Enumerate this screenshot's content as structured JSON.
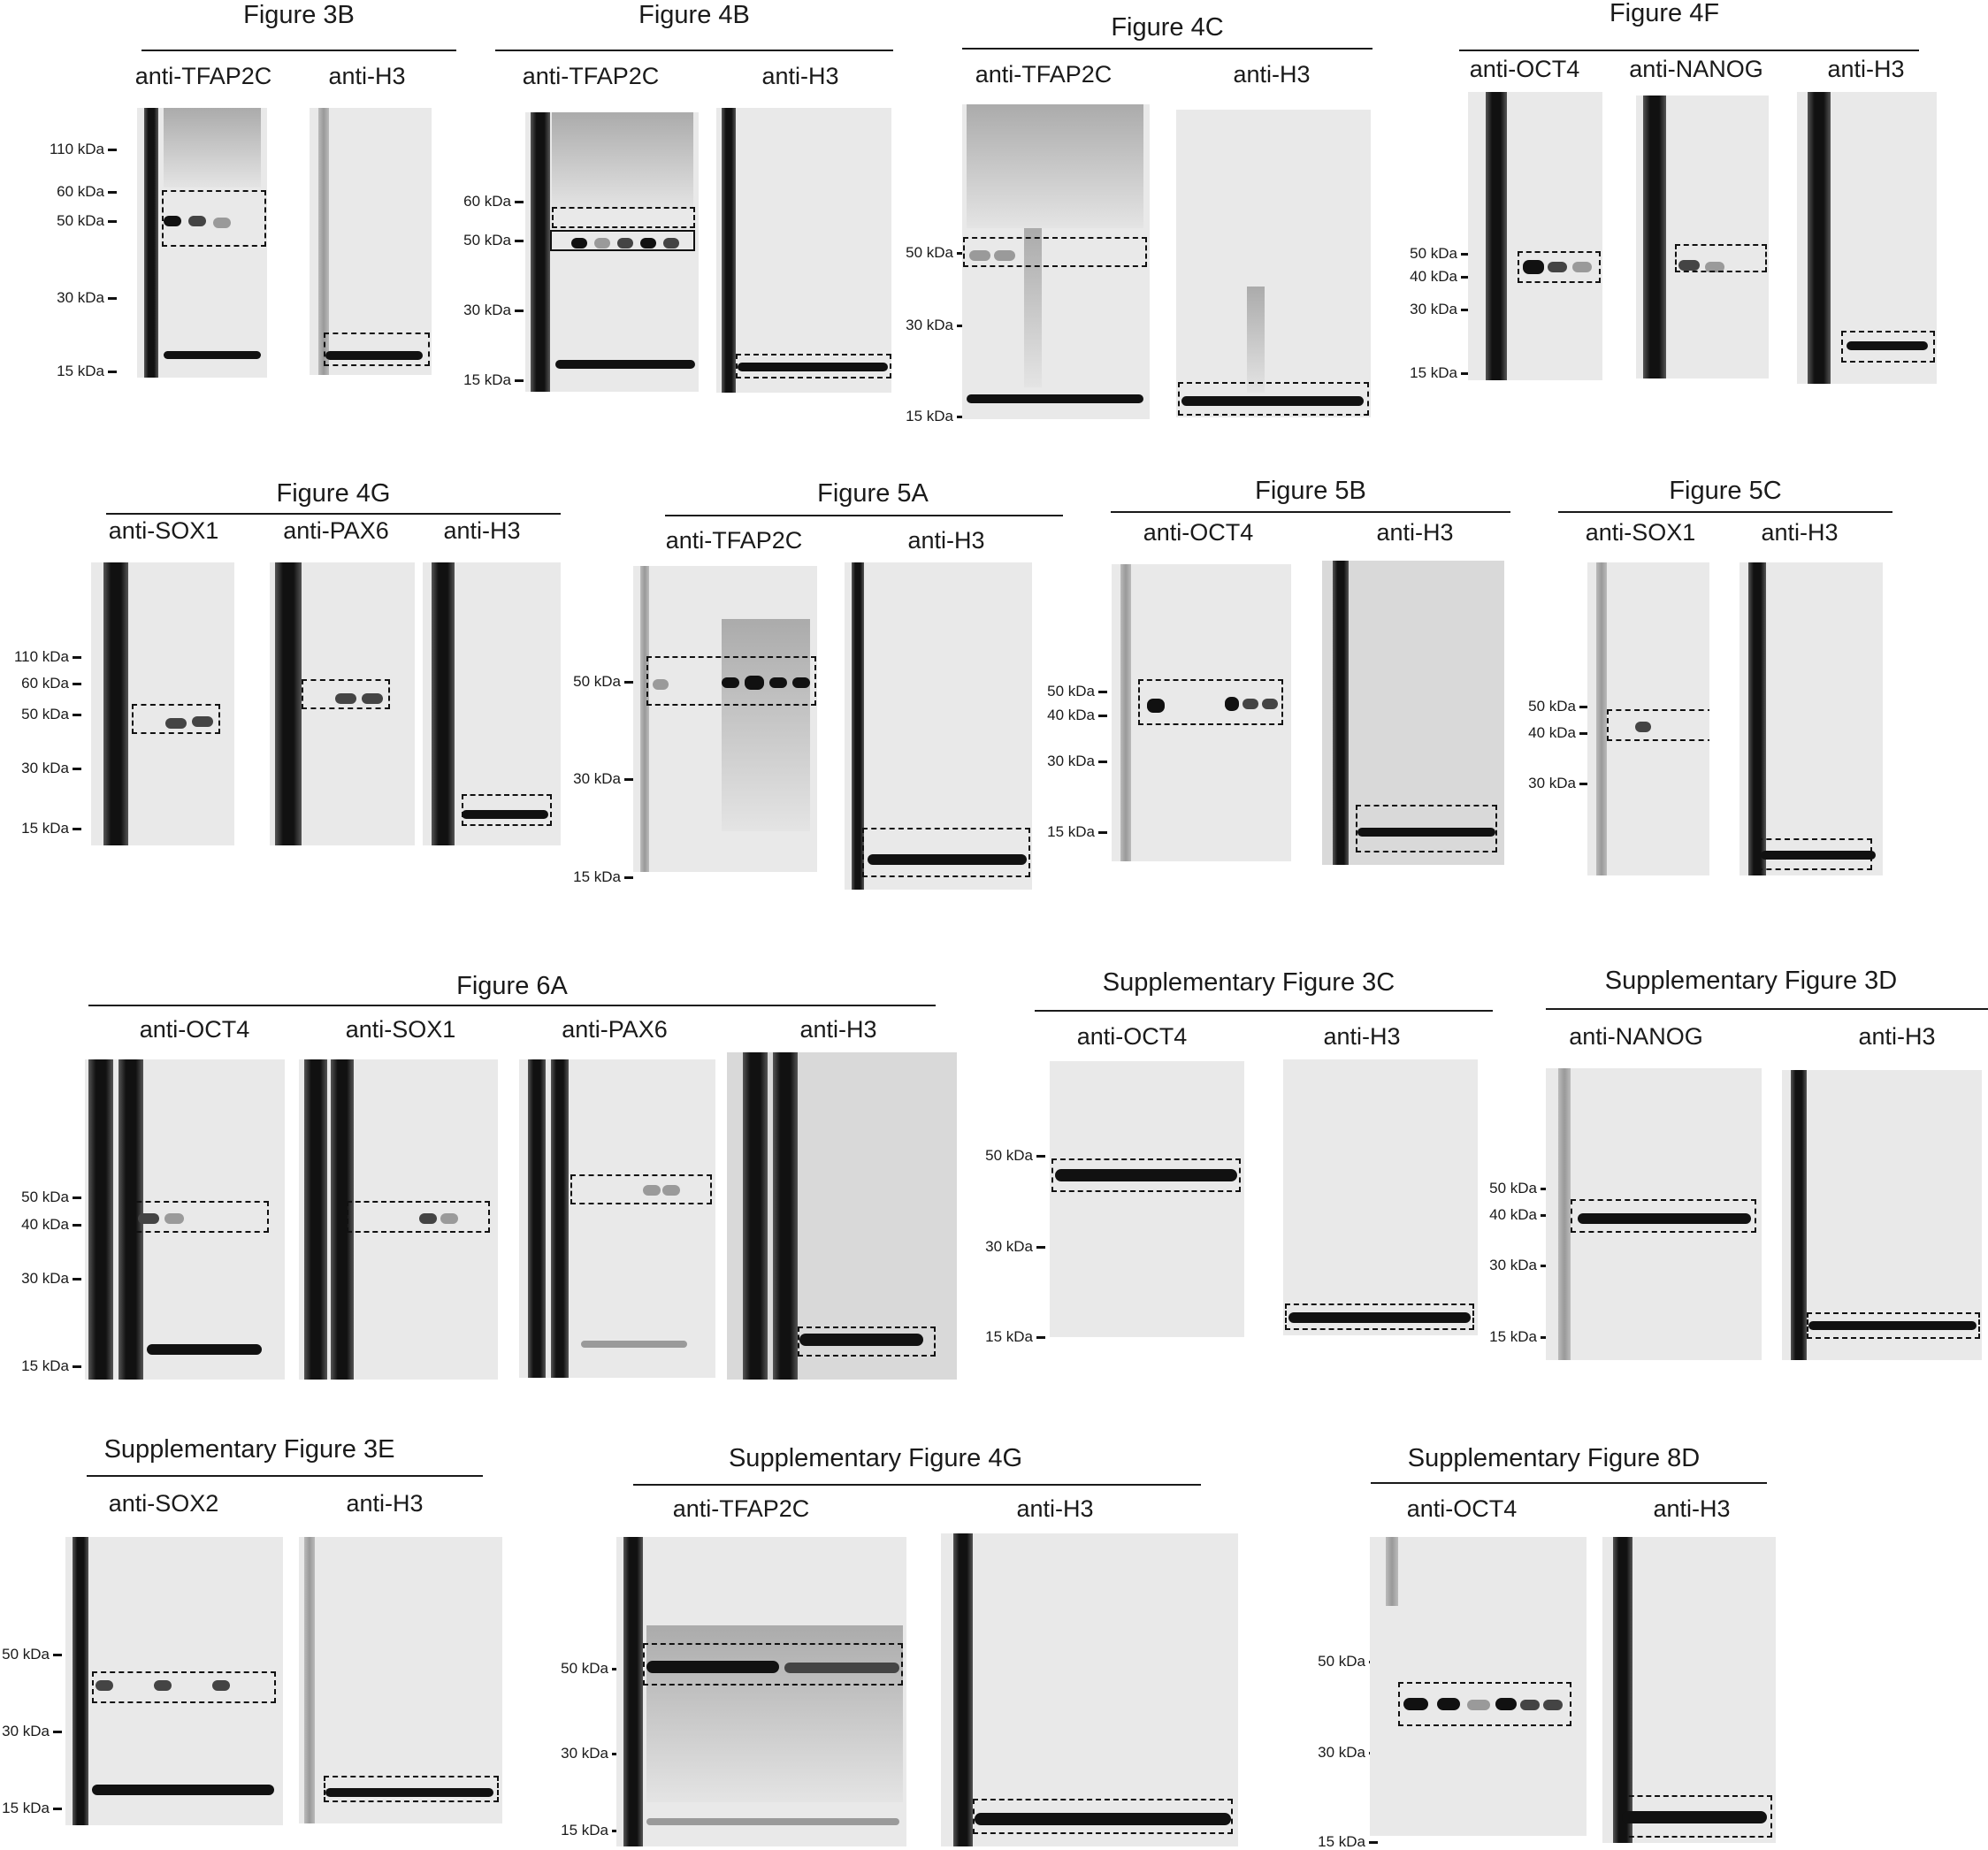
{
  "panels": {
    "fig3b": {
      "title": "Figure 3B",
      "antibodies": [
        "anti-TFAP2C",
        "anti-H3"
      ],
      "markers": [
        "110 kDa",
        "60 kDa",
        "50 kDa",
        "30 kDa",
        "15 kDa"
      ]
    },
    "fig4b": {
      "title": "Figure 4B",
      "antibodies": [
        "anti-TFAP2C",
        "anti-H3"
      ],
      "markers": [
        "60 kDa",
        "50 kDa",
        "30 kDa",
        "15 kDa"
      ]
    },
    "fig4c": {
      "title": "Figure 4C",
      "antibodies": [
        "anti-TFAP2C",
        "anti-H3"
      ],
      "markers": [
        "50 kDa",
        "30 kDa",
        "15 kDa"
      ]
    },
    "fig4f": {
      "title": "Figure 4F",
      "antibodies": [
        "anti-OCT4",
        "anti-NANOG",
        "anti-H3"
      ],
      "markers": [
        "50 kDa",
        "40 kDa",
        "30 kDa",
        "15 kDa"
      ]
    },
    "fig4g": {
      "title": "Figure 4G",
      "antibodies": [
        "anti-SOX1",
        "anti-PAX6",
        "anti-H3"
      ],
      "markers": [
        "110 kDa",
        "60 kDa",
        "50 kDa",
        "30 kDa",
        "15 kDa"
      ]
    },
    "fig5a": {
      "title": "Figure 5A",
      "antibodies": [
        "anti-TFAP2C",
        "anti-H3"
      ],
      "markers": [
        "50 kDa",
        "30 kDa",
        "15 kDa"
      ]
    },
    "fig5b": {
      "title": "Figure 5B",
      "antibodies": [
        "anti-OCT4",
        "anti-H3"
      ],
      "markers": [
        "50 kDa",
        "40 kDa",
        "30 kDa",
        "15 kDa"
      ]
    },
    "fig5c": {
      "title": "Figure 5C",
      "antibodies": [
        "anti-SOX1",
        "anti-H3"
      ],
      "markers": [
        "50 kDa",
        "40 kDa",
        "30 kDa"
      ]
    },
    "fig6a": {
      "title": "Figure 6A",
      "antibodies": [
        "anti-OCT4",
        "anti-SOX1",
        "anti-PAX6",
        "anti-H3"
      ],
      "markers": [
        "50 kDa",
        "40 kDa",
        "30 kDa",
        "15 kDa"
      ]
    },
    "sfig3c": {
      "title": "Supplementary Figure 3C",
      "antibodies": [
        "anti-OCT4",
        "anti-H3"
      ],
      "markers": [
        "50 kDa",
        "30 kDa",
        "15 kDa"
      ]
    },
    "sfig3d": {
      "title": "Supplementary Figure 3D",
      "antibodies": [
        "anti-NANOG",
        "anti-H3"
      ],
      "markers": [
        "50 kDa",
        "40 kDa",
        "30 kDa",
        "15 kDa"
      ]
    },
    "sfig3e": {
      "title": "Supplementary Figure 3E",
      "antibodies": [
        "anti-SOX2",
        "anti-H3"
      ],
      "markers": [
        "50 kDa",
        "30 kDa",
        "15 kDa"
      ]
    },
    "sfig4g": {
      "title": "Supplementary Figure 4G",
      "antibodies": [
        "anti-TFAP2C",
        "anti-H3"
      ],
      "markers": [
        "50 kDa",
        "30 kDa",
        "15 kDa"
      ]
    },
    "sfig8d": {
      "title": "Supplementary Figure 8D",
      "antibodies": [
        "anti-OCT4",
        "anti-H3"
      ],
      "markers": [
        "50 kDa",
        "30 kDa",
        "15 kDa"
      ]
    }
  },
  "colors": {
    "ink": "#1a1a1a",
    "membrane": "#e9e9e9",
    "band": "#111111"
  }
}
